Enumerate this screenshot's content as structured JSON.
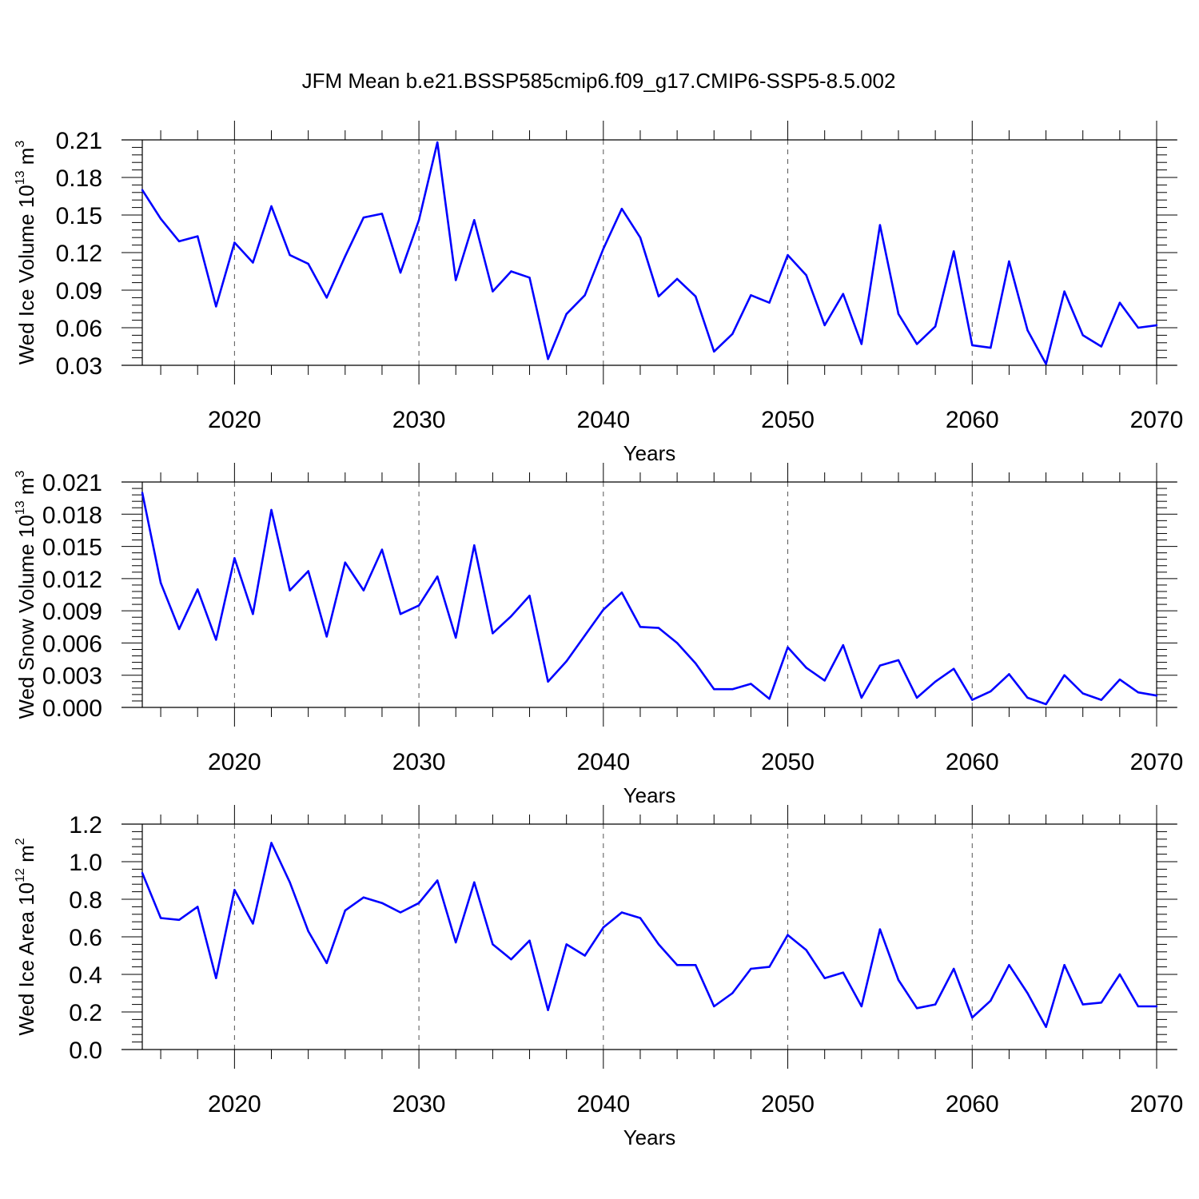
{
  "figure_title": "JFM Mean b.e21.BSSP585cmip6.f09_g17.CMIP6-SSP5-8.5.002",
  "series_color": "#0000ff",
  "chart_data": [
    {
      "type": "line",
      "title": "JFM Mean b.e21.BSSP585cmip6.f09_g17.CMIP6-SSP5-8.5.002",
      "xlabel": "Years",
      "ylabel_prefix": "Wed Ice Volume 10",
      "ylabel_exp": "13",
      "ylabel_unit": " m",
      "ylabel_unit_exp": "3",
      "xlim": [
        2015,
        2070
      ],
      "ylim": [
        0.03,
        0.21
      ],
      "yticks": [
        0.03,
        0.06,
        0.09,
        0.12,
        0.15,
        0.18,
        0.21
      ],
      "ytick_labels": [
        "0.03",
        "0.06",
        "0.09",
        "0.12",
        "0.15",
        "0.18",
        "0.21"
      ],
      "xticks": [
        2020,
        2030,
        2040,
        2050,
        2060,
        2070
      ],
      "xtick_labels": [
        "2020",
        "2030",
        "2040",
        "2050",
        "2060",
        "2070"
      ],
      "x": [
        2015,
        2016,
        2017,
        2018,
        2019,
        2020,
        2021,
        2022,
        2023,
        2024,
        2025,
        2026,
        2027,
        2028,
        2029,
        2030,
        2031,
        2032,
        2033,
        2034,
        2035,
        2036,
        2037,
        2038,
        2039,
        2040,
        2041,
        2042,
        2043,
        2044,
        2045,
        2046,
        2047,
        2048,
        2049,
        2050,
        2051,
        2052,
        2053,
        2054,
        2055,
        2056,
        2057,
        2058,
        2059,
        2060,
        2061,
        2062,
        2063,
        2064,
        2065,
        2066,
        2067,
        2068,
        2069,
        2070
      ],
      "y": [
        0.17,
        0.147,
        0.129,
        0.133,
        0.077,
        0.128,
        0.112,
        0.157,
        0.118,
        0.111,
        0.084,
        0.117,
        0.148,
        0.151,
        0.104,
        0.146,
        0.208,
        0.098,
        0.146,
        0.089,
        0.105,
        0.1,
        0.035,
        0.071,
        0.086,
        0.123,
        0.155,
        0.132,
        0.085,
        0.099,
        0.085,
        0.041,
        0.055,
        0.086,
        0.08,
        0.118,
        0.102,
        0.062,
        0.087,
        0.047,
        0.142,
        0.071,
        0.047,
        0.061,
        0.121,
        0.046,
        0.044,
        0.113,
        0.058,
        0.031,
        0.089,
        0.054,
        0.045,
        0.08,
        0.06,
        0.062
      ]
    },
    {
      "type": "line",
      "xlabel": "Years",
      "ylabel_prefix": "Wed Snow Volume 10",
      "ylabel_exp": "13",
      "ylabel_unit": " m",
      "ylabel_unit_exp": "3",
      "xlim": [
        2015,
        2070
      ],
      "ylim": [
        0.0,
        0.021
      ],
      "yticks": [
        0.0,
        0.003,
        0.006,
        0.009,
        0.012,
        0.015,
        0.018,
        0.021
      ],
      "ytick_labels": [
        "0.000",
        "0.003",
        "0.006",
        "0.009",
        "0.012",
        "0.015",
        "0.018",
        "0.021"
      ],
      "xticks": [
        2020,
        2030,
        2040,
        2050,
        2060,
        2070
      ],
      "xtick_labels": [
        "2020",
        "2030",
        "2040",
        "2050",
        "2060",
        "2070"
      ],
      "x": [
        2015,
        2016,
        2017,
        2018,
        2019,
        2020,
        2021,
        2022,
        2023,
        2024,
        2025,
        2026,
        2027,
        2028,
        2029,
        2030,
        2031,
        2032,
        2033,
        2034,
        2035,
        2036,
        2037,
        2038,
        2039,
        2040,
        2041,
        2042,
        2043,
        2044,
        2045,
        2046,
        2047,
        2048,
        2049,
        2050,
        2051,
        2052,
        2053,
        2054,
        2055,
        2056,
        2057,
        2058,
        2059,
        2060,
        2061,
        2062,
        2063,
        2064,
        2065,
        2066,
        2067,
        2068,
        2069,
        2070
      ],
      "y": [
        0.02,
        0.0116,
        0.0073,
        0.011,
        0.0063,
        0.0139,
        0.0087,
        0.0184,
        0.0109,
        0.0127,
        0.0066,
        0.0135,
        0.0109,
        0.0147,
        0.0087,
        0.0095,
        0.0122,
        0.0065,
        0.0151,
        0.0069,
        0.0085,
        0.0104,
        0.0024,
        0.0043,
        0.0067,
        0.0091,
        0.0107,
        0.0075,
        0.0074,
        0.006,
        0.0041,
        0.0017,
        0.0017,
        0.0022,
        0.0008,
        0.0056,
        0.0037,
        0.0025,
        0.0058,
        0.0009,
        0.0039,
        0.0044,
        0.0009,
        0.0024,
        0.0036,
        0.0007,
        0.0015,
        0.0031,
        0.0009,
        0.0003,
        0.003,
        0.0013,
        0.0007,
        0.0026,
        0.0014,
        0.0011
      ]
    },
    {
      "type": "line",
      "xlabel": "Years",
      "ylabel_prefix": "Wed Ice Area 10",
      "ylabel_exp": "12",
      "ylabel_unit": " m",
      "ylabel_unit_exp": "2",
      "xlim": [
        2015,
        2070
      ],
      "ylim": [
        0.0,
        1.2
      ],
      "yticks": [
        0.0,
        0.2,
        0.4,
        0.6,
        0.8,
        1.0,
        1.2
      ],
      "ytick_labels": [
        "0.0",
        "0.2",
        "0.4",
        "0.6",
        "0.8",
        "1.0",
        "1.2"
      ],
      "xticks": [
        2020,
        2030,
        2040,
        2050,
        2060,
        2070
      ],
      "xtick_labels": [
        "2020",
        "2030",
        "2040",
        "2050",
        "2060",
        "2070"
      ],
      "x": [
        2015,
        2016,
        2017,
        2018,
        2019,
        2020,
        2021,
        2022,
        2023,
        2024,
        2025,
        2026,
        2027,
        2028,
        2029,
        2030,
        2031,
        2032,
        2033,
        2034,
        2035,
        2036,
        2037,
        2038,
        2039,
        2040,
        2041,
        2042,
        2043,
        2044,
        2045,
        2046,
        2047,
        2048,
        2049,
        2050,
        2051,
        2052,
        2053,
        2054,
        2055,
        2056,
        2057,
        2058,
        2059,
        2060,
        2061,
        2062,
        2063,
        2064,
        2065,
        2066,
        2067,
        2068,
        2069,
        2070
      ],
      "y": [
        0.94,
        0.7,
        0.69,
        0.76,
        0.38,
        0.85,
        0.67,
        1.1,
        0.89,
        0.63,
        0.46,
        0.74,
        0.81,
        0.78,
        0.73,
        0.78,
        0.9,
        0.57,
        0.89,
        0.56,
        0.48,
        0.58,
        0.21,
        0.56,
        0.5,
        0.65,
        0.73,
        0.7,
        0.56,
        0.45,
        0.45,
        0.23,
        0.3,
        0.43,
        0.44,
        0.61,
        0.53,
        0.38,
        0.41,
        0.23,
        0.64,
        0.37,
        0.22,
        0.24,
        0.43,
        0.17,
        0.26,
        0.45,
        0.3,
        0.12,
        0.45,
        0.24,
        0.25,
        0.4,
        0.23,
        0.23
      ]
    }
  ]
}
